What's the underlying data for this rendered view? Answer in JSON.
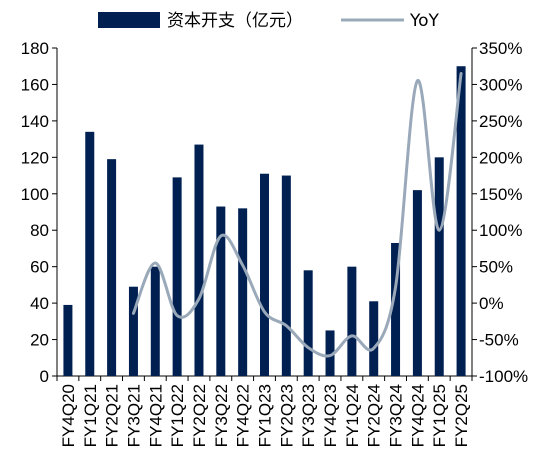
{
  "chart_data": {
    "type": "bar",
    "categories": [
      "FY4Q20",
      "FY1Q21",
      "FY2Q21",
      "FY3Q21",
      "FY4Q21",
      "FY1Q22",
      "FY2Q22",
      "FY3Q22",
      "FY4Q22",
      "FY1Q23",
      "FY2Q23",
      "FY3Q23",
      "FY4Q23",
      "FY1Q24",
      "FY2Q24",
      "FY3Q24",
      "FY4Q24",
      "FY1Q25",
      "FY2Q25"
    ],
    "series": [
      {
        "name": "资本开支（亿元）",
        "type": "bar",
        "axis": "left",
        "color": "#002052",
        "values": [
          39,
          134,
          119,
          49,
          60,
          109,
          127,
          93,
          92,
          111,
          110,
          58,
          25,
          60,
          41,
          73,
          102,
          120,
          170
        ]
      },
      {
        "name": "YoY",
        "type": "line",
        "axis": "right",
        "color": "#9aa9b9",
        "values": [
          null,
          null,
          null,
          -14,
          55,
          -17,
          6,
          92,
          52,
          -12,
          -31,
          -61,
          -72,
          -45,
          -62,
          22,
          305,
          100,
          315
        ]
      }
    ],
    "y_left": {
      "min": 0,
      "max": 180,
      "ticks": [
        "0",
        "20",
        "40",
        "60",
        "80",
        "100",
        "120",
        "140",
        "160",
        "180"
      ]
    },
    "y_right": {
      "min": -100,
      "max": 350,
      "ticks": [
        "-100%",
        "-50%",
        "0%",
        "50%",
        "100%",
        "150%",
        "200%",
        "250%",
        "300%",
        "350%"
      ]
    },
    "grid": false,
    "legend_position": "top"
  }
}
